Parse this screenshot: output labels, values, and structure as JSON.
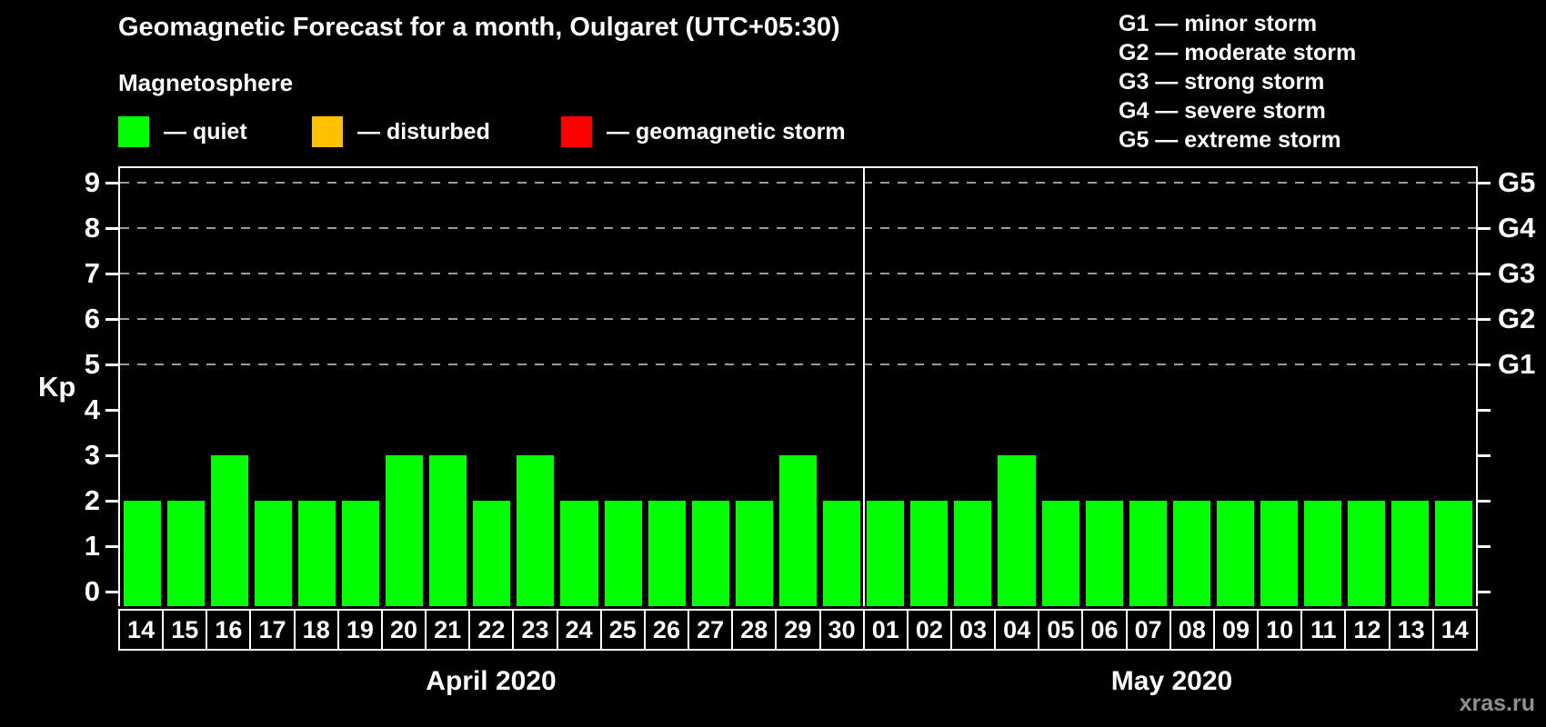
{
  "title": "Geomagnetic Forecast for a month, Oulgaret (UTC+05:30)",
  "magnetosphere": {
    "heading": "Magnetosphere",
    "items": [
      {
        "name": "quiet",
        "label": "— quiet",
        "color": "#00ff00"
      },
      {
        "name": "disturbed",
        "label": "— disturbed",
        "color": "#ffc000"
      },
      {
        "name": "geomagnetic-storm",
        "label": "— geomagnetic storm",
        "color": "#ff0000"
      }
    ]
  },
  "storm_scale_legend": [
    "G1 — minor storm",
    "G2 — moderate storm",
    "G3 — strong storm",
    "G4 — severe storm",
    "G5 — extreme storm"
  ],
  "watermark": "xras.ru",
  "chart_data": {
    "type": "bar",
    "ylabel": "Kp",
    "ylim": [
      0,
      9.7
    ],
    "yticks": [
      0,
      1,
      2,
      3,
      4,
      5,
      6,
      7,
      8,
      9
    ],
    "grid_kp_levels": [
      5,
      6,
      7,
      8,
      9
    ],
    "right_axis": [
      {
        "kp": 5,
        "label": "G1"
      },
      {
        "kp": 6,
        "label": "G2"
      },
      {
        "kp": 7,
        "label": "G3"
      },
      {
        "kp": 8,
        "label": "G4"
      },
      {
        "kp": 9,
        "label": "G5"
      }
    ],
    "bar_color": "#00ff00",
    "legend_position": "top",
    "grid": "dashed horizontal at G levels",
    "months": [
      {
        "label": "April 2020",
        "days": [
          "14",
          "15",
          "16",
          "17",
          "18",
          "19",
          "20",
          "21",
          "22",
          "23",
          "24",
          "25",
          "26",
          "27",
          "28",
          "29",
          "30"
        ],
        "values": [
          2,
          2,
          3,
          2,
          2,
          2,
          3,
          3,
          2,
          3,
          2,
          2,
          2,
          2,
          2,
          3,
          2
        ]
      },
      {
        "label": "May 2020",
        "days": [
          "01",
          "02",
          "03",
          "04",
          "05",
          "06",
          "07",
          "08",
          "09",
          "10",
          "11",
          "12",
          "13",
          "14"
        ],
        "values": [
          2,
          2,
          2,
          3,
          2,
          2,
          2,
          2,
          2,
          2,
          2,
          2,
          2,
          2
        ]
      }
    ]
  }
}
